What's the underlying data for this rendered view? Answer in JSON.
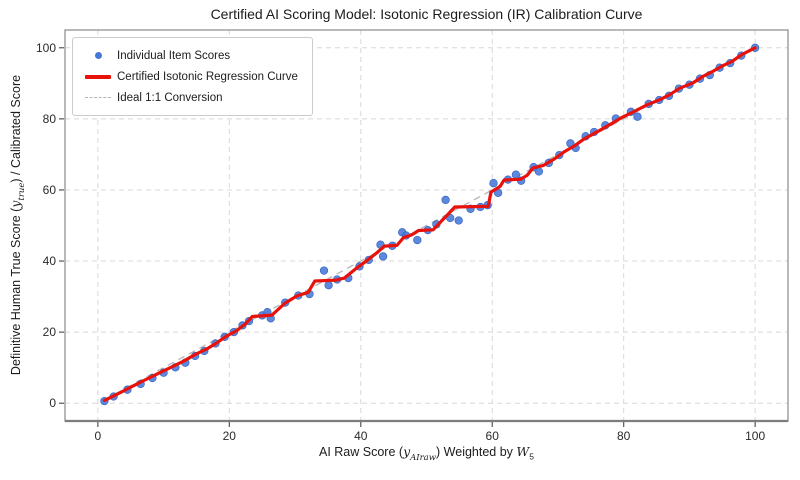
{
  "title": "Certified AI Scoring Model: Isotonic Regression (IR) Calibration Curve",
  "legend": {
    "items": [
      {
        "label": "Individual Item Scores",
        "marker": "dot"
      },
      {
        "label": "Certified Isotonic Regression Curve",
        "marker": "line"
      },
      {
        "label": "Ideal 1:1 Conversion",
        "marker": "dashed"
      }
    ]
  },
  "axes": {
    "x_label": {
      "p1": "AI Raw Score (",
      "var1": "y",
      "sub1": "AIraw",
      "p2": ") Weighted by ",
      "var2": "W",
      "sub2": "5"
    },
    "y_label": {
      "p1": "Definitive Human True Score (",
      "var1": "y",
      "sub1": "true",
      "p2": ") / Calibrated Score"
    }
  },
  "colors": {
    "scatter": "#4677d8",
    "scatter_edge": "#3a66c4",
    "curve": "#e8120b",
    "ideal": "#b5b5b5",
    "grid": "#d8d8d8",
    "spine": "#8a8a8a",
    "tick_text": "#2a2a2a"
  },
  "chart_data": {
    "type": "scatter",
    "title": "Certified AI Scoring Model: Isotonic Regression (IR) Calibration Curve",
    "xlabel": "AI Raw Score (y_AIraw) Weighted by W_5",
    "ylabel": "Definitive Human True Score (y_true) / Calibrated Score",
    "xlim": [
      -5,
      105
    ],
    "ylim": [
      -5,
      105
    ],
    "xticks": [
      0,
      20,
      40,
      60,
      80,
      100
    ],
    "yticks": [
      0,
      20,
      40,
      60,
      80,
      100
    ],
    "grid": true,
    "grid_style": "dashed",
    "legend_position": "upper left",
    "series": [
      {
        "name": "Individual Item Scores",
        "type": "scatter",
        "points": [
          [
            1,
            0.6
          ],
          [
            2.4,
            1.9
          ],
          [
            4.5,
            3.8
          ],
          [
            6.5,
            5.4
          ],
          [
            8.3,
            7.1
          ],
          [
            10,
            8.6
          ],
          [
            11.8,
            10.1
          ],
          [
            13.3,
            11.4
          ],
          [
            14.8,
            13.3
          ],
          [
            16.2,
            14.7
          ],
          [
            17.9,
            16.8
          ],
          [
            19.3,
            18.7
          ],
          [
            20.7,
            20
          ],
          [
            22,
            21.9
          ],
          [
            23,
            23.1
          ],
          [
            25,
            24.7
          ],
          [
            25.8,
            25.6
          ],
          [
            26.3,
            23.9
          ],
          [
            28.5,
            28.3
          ],
          [
            30.5,
            30.3
          ],
          [
            32.2,
            30.7
          ],
          [
            34.4,
            37.3
          ],
          [
            35.1,
            33.2
          ],
          [
            36.4,
            34.8
          ],
          [
            38.1,
            35.2
          ],
          [
            39.8,
            38.5
          ],
          [
            41.2,
            40.3
          ],
          [
            43,
            44.6
          ],
          [
            43.4,
            41.3
          ],
          [
            44.8,
            44.3
          ],
          [
            46.3,
            48.1
          ],
          [
            46.9,
            47.2
          ],
          [
            48.6,
            45.9
          ],
          [
            50.2,
            48.7
          ],
          [
            51.5,
            50.3
          ],
          [
            52.9,
            57.2
          ],
          [
            53.6,
            52.1
          ],
          [
            54.9,
            51.4
          ],
          [
            56.7,
            54.7
          ],
          [
            58.2,
            55.2
          ],
          [
            59.3,
            55.7
          ],
          [
            60.2,
            61.9
          ],
          [
            60.9,
            59.2
          ],
          [
            62.4,
            62.9
          ],
          [
            63.6,
            64.3
          ],
          [
            64.4,
            62.6
          ],
          [
            66.3,
            66.4
          ],
          [
            67.1,
            65.2
          ],
          [
            68.6,
            67.6
          ],
          [
            70.2,
            69.8
          ],
          [
            71.9,
            73.1
          ],
          [
            72.7,
            71.8
          ],
          [
            74.2,
            75.1
          ],
          [
            75.5,
            76.3
          ],
          [
            77.2,
            78.2
          ],
          [
            78.8,
            80.1
          ],
          [
            81.1,
            82
          ],
          [
            82.1,
            80.6
          ],
          [
            83.8,
            84.2
          ],
          [
            85.4,
            85.3
          ],
          [
            86.9,
            86.5
          ],
          [
            88.4,
            88.5
          ],
          [
            90,
            89.6
          ],
          [
            91.6,
            91.3
          ],
          [
            93.1,
            92.3
          ],
          [
            94.6,
            94.4
          ],
          [
            96.2,
            95.7
          ],
          [
            97.9,
            97.8
          ],
          [
            100,
            100
          ]
        ]
      },
      {
        "name": "Certified Isotonic Regression Curve",
        "type": "line",
        "points": [
          [
            1,
            0.8
          ],
          [
            3,
            2.6
          ],
          [
            5,
            4.5
          ],
          [
            7,
            6.4
          ],
          [
            9,
            8.2
          ],
          [
            11,
            10
          ],
          [
            13,
            11.8
          ],
          [
            15,
            13.9
          ],
          [
            16.5,
            15.2
          ],
          [
            18,
            16.9
          ],
          [
            19.5,
            18.8
          ],
          [
            21,
            20.3
          ],
          [
            22.5,
            22.4
          ],
          [
            23.5,
            24.4
          ],
          [
            26.5,
            24.8
          ],
          [
            28.5,
            28.2
          ],
          [
            30.3,
            30.2
          ],
          [
            32,
            31.2
          ],
          [
            33,
            34.4
          ],
          [
            36.2,
            34.6
          ],
          [
            37.5,
            35.2
          ],
          [
            39.5,
            38.2
          ],
          [
            41,
            40.2
          ],
          [
            42.5,
            42.4
          ],
          [
            43.6,
            44.2
          ],
          [
            45.5,
            44.4
          ],
          [
            46.5,
            46.6
          ],
          [
            47.8,
            47.4
          ],
          [
            48.8,
            48.6
          ],
          [
            51,
            48.8
          ],
          [
            52.3,
            51.3
          ],
          [
            53.3,
            53.2
          ],
          [
            54.3,
            55.2
          ],
          [
            59.4,
            55.4
          ],
          [
            59.8,
            59.4
          ],
          [
            60.6,
            60.3
          ],
          [
            61.2,
            61
          ],
          [
            61.8,
            62.8
          ],
          [
            64.3,
            63
          ],
          [
            65.3,
            64.1
          ],
          [
            66.2,
            66.2
          ],
          [
            67.8,
            66.9
          ],
          [
            69.5,
            68.8
          ],
          [
            71,
            70.8
          ],
          [
            72.5,
            72.4
          ],
          [
            74,
            74.4
          ],
          [
            76,
            76.4
          ],
          [
            78,
            78.5
          ],
          [
            79.5,
            80.2
          ],
          [
            81.5,
            82
          ],
          [
            83.5,
            83.9
          ],
          [
            85.5,
            85.4
          ],
          [
            87,
            86.8
          ],
          [
            88.5,
            88.6
          ],
          [
            90.5,
            90.1
          ],
          [
            92,
            91.9
          ],
          [
            93.5,
            93.3
          ],
          [
            95,
            94.9
          ],
          [
            96.5,
            96.2
          ],
          [
            98,
            98.1
          ],
          [
            100,
            100
          ]
        ]
      },
      {
        "name": "Ideal 1:1 Conversion",
        "type": "line",
        "style": "dashed",
        "points": [
          [
            1,
            1
          ],
          [
            100,
            100
          ]
        ]
      }
    ]
  }
}
